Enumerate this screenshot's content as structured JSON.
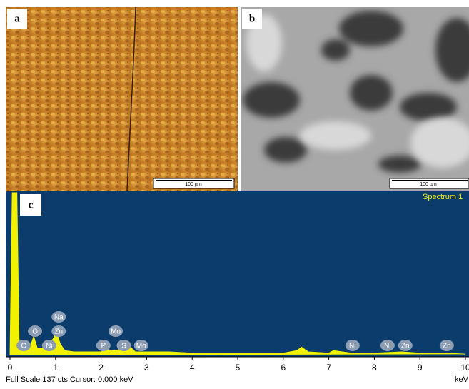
{
  "panels": [
    {
      "label": "a",
      "scale_bar": "100 µm"
    },
    {
      "label": "b",
      "scale_bar": "100 µm"
    }
  ],
  "spectrum": {
    "type": "area",
    "label": "c",
    "legend": "Spectrum 1",
    "color": "#f2f200",
    "x": [
      0,
      0.05,
      0.1,
      0.15,
      0.2,
      0.28,
      0.35,
      0.45,
      0.52,
      0.6,
      0.7,
      0.8,
      0.86,
      0.95,
      1.02,
      1.1,
      1.2,
      1.4,
      1.7,
      2.0,
      2.1,
      2.3,
      2.5,
      2.62,
      2.75,
      3.0,
      3.5,
      4.0,
      4.5,
      5.0,
      5.5,
      6.0,
      6.3,
      6.4,
      6.55,
      7.0,
      7.1,
      7.5,
      8.0,
      8.6,
      9.0,
      9.6,
      10
    ],
    "counts": [
      0,
      137,
      137,
      137,
      10,
      6,
      5,
      8,
      16,
      6,
      6,
      9,
      10,
      14,
      20,
      10,
      4,
      3,
      3,
      3,
      5,
      4,
      6,
      8,
      3,
      3,
      3,
      2,
      2,
      2,
      2,
      2,
      4,
      7,
      3,
      2,
      4,
      2,
      2,
      3,
      2,
      2,
      1
    ],
    "xlim": [
      0,
      10
    ],
    "ylim": [
      0,
      137
    ],
    "xticks": [
      0,
      1,
      2,
      3,
      4,
      5,
      6,
      7,
      8,
      9,
      10
    ],
    "x_unit": "keV",
    "peaks": [
      {
        "label": "C",
        "x": 0.3
      },
      {
        "label": "O",
        "x": 0.55
      },
      {
        "label": "Ni",
        "x": 0.86
      },
      {
        "label": "Zn",
        "x": 1.07
      },
      {
        "label": "Na",
        "x": 1.07
      },
      {
        "label": "P",
        "x": 2.05
      },
      {
        "label": "Mo",
        "x": 2.32
      },
      {
        "label": "S",
        "x": 2.5
      },
      {
        "label": "Mo",
        "x": 2.88
      },
      {
        "label": "Ni",
        "x": 7.52
      },
      {
        "label": "Ni",
        "x": 8.29
      },
      {
        "label": "Zn",
        "x": 8.68
      },
      {
        "label": "Zn",
        "x": 9.59
      }
    ],
    "footer": "Full Scale 137 cts  Cursor: 0.000 keV"
  }
}
